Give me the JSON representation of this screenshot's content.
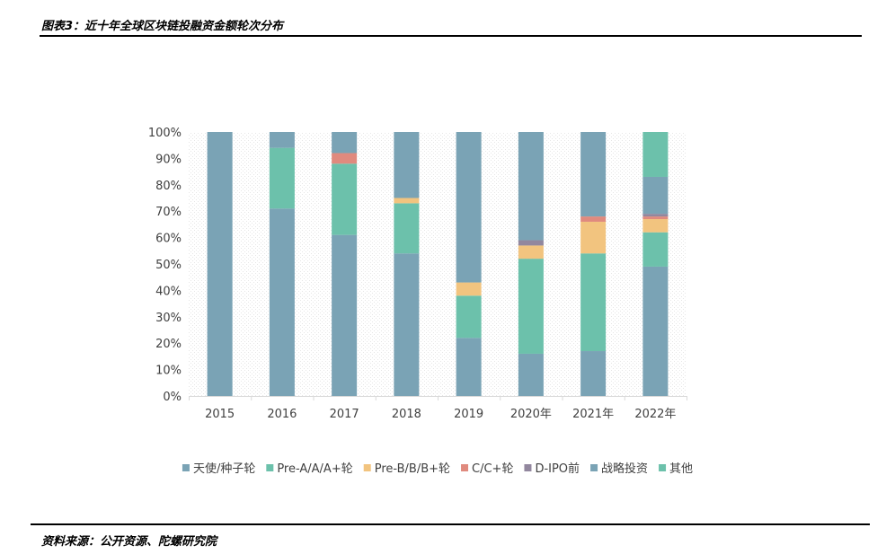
{
  "figure_title": "图表3：近十年全球区块链投融资金额轮次分布",
  "source_note": "资料来源：公开资源、陀螺研究院",
  "chart_data": {
    "type": "bar",
    "stacked": true,
    "categories": [
      "2015",
      "2016",
      "2017",
      "2018",
      "2019",
      "2020年",
      "2021年",
      "2022年"
    ],
    "ylim": [
      0,
      100
    ],
    "yticks": [
      0,
      10,
      20,
      30,
      40,
      50,
      60,
      70,
      80,
      90,
      100
    ],
    "ytick_labels": [
      "0%",
      "10%",
      "20%",
      "30%",
      "40%",
      "50%",
      "60%",
      "70%",
      "80%",
      "90%",
      "100%"
    ],
    "legend_position": "bottom",
    "grid": false,
    "series": [
      {
        "name": "天使/种子轮",
        "color": "#7aa3b5",
        "values": [
          100,
          71,
          61,
          54,
          22,
          16,
          17,
          49
        ]
      },
      {
        "name": "Pre-A/A/A+轮",
        "color": "#6cc1ab",
        "values": [
          0,
          23,
          27,
          19,
          16,
          36,
          37,
          13
        ]
      },
      {
        "name": "Pre-B/B/B+轮",
        "color": "#f2c47f",
        "values": [
          0,
          0,
          0,
          2,
          5,
          5,
          12,
          5
        ]
      },
      {
        "name": "C/C+轮",
        "color": "#e08a7e",
        "values": [
          0,
          0,
          4,
          0,
          0,
          0,
          2,
          1
        ]
      },
      {
        "name": "D-IPO前",
        "color": "#92879e",
        "values": [
          0,
          0,
          0,
          0,
          0,
          2,
          0,
          1
        ]
      },
      {
        "name": "战略投资",
        "color": "#7aa3b5",
        "values": [
          0,
          6,
          8,
          25,
          57,
          41,
          32,
          14
        ]
      },
      {
        "name": "其他",
        "color": "#6cc1ab",
        "values": [
          0,
          0,
          0,
          0,
          0,
          0,
          0,
          17
        ]
      }
    ]
  }
}
